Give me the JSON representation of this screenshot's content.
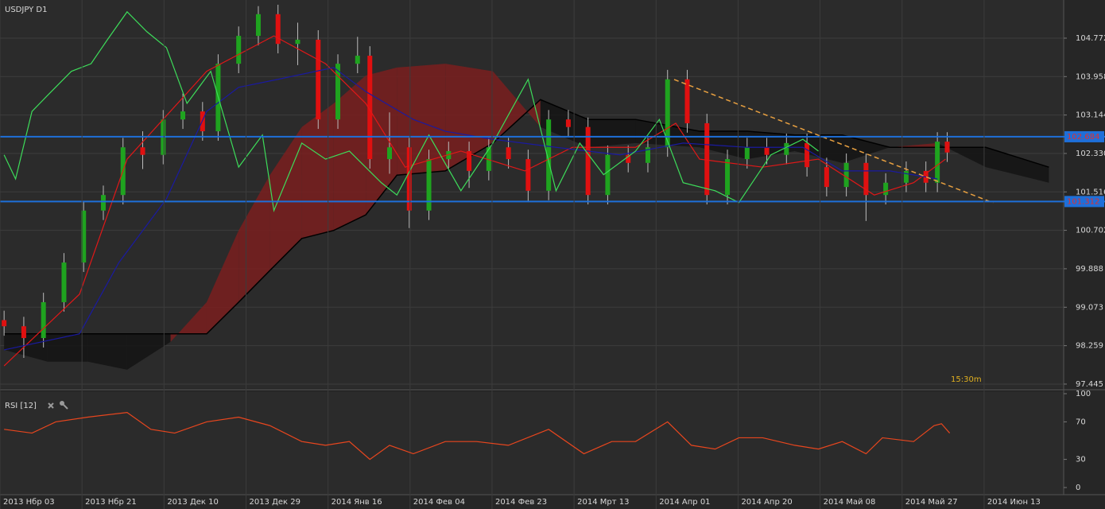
{
  "chart_data": [
    {
      "type": "candlestick",
      "title": "USDJPY D1",
      "annotation": "15:30m",
      "x": [
        0.05,
        0.29,
        0.53,
        0.78,
        1.02,
        1.26,
        1.5,
        1.74,
        1.99,
        2.23,
        2.47,
        2.66,
        2.91,
        3.15,
        3.39,
        3.63,
        3.88,
        4.12,
        4.36,
        4.51,
        4.75,
        4.99,
        5.23,
        5.47,
        5.72,
        5.96,
        6.2,
        6.44,
        6.69,
        6.93,
        7.17,
        7.41,
        7.66,
        7.9,
        8.14,
        8.38,
        8.62,
        8.87,
        9.11,
        9.35,
        9.59,
        9.84,
        10.08,
        10.32,
        10.56,
        10.8,
        11.05,
        11.29,
        11.43,
        11.55
      ],
      "open": [
        98.8,
        98.67,
        98.42,
        99.18,
        100.02,
        101.12,
        101.45,
        102.46,
        102.3,
        103.05,
        103.22,
        102.8,
        104.23,
        104.82,
        105.28,
        104.65,
        104.74,
        103.05,
        104.23,
        104.4,
        102.21,
        102.46,
        101.12,
        102.21,
        102.38,
        101.96,
        102.46,
        102.21,
        101.54,
        103.05,
        102.89,
        101.45,
        102.3,
        102.13,
        102.46,
        103.9,
        102.97,
        101.45,
        102.21,
        102.46,
        102.3,
        102.55,
        102.04,
        101.62,
        102.13,
        101.45,
        101.71,
        101.96,
        101.71,
        102.58
      ],
      "high": [
        99.0,
        98.87,
        99.38,
        100.22,
        101.32,
        101.65,
        102.66,
        102.8,
        103.25,
        103.6,
        103.42,
        104.43,
        105.02,
        105.45,
        105.48,
        105.1,
        104.94,
        104.43,
        104.8,
        104.6,
        103.2,
        102.66,
        102.41,
        102.58,
        102.58,
        102.66,
        102.66,
        102.41,
        103.25,
        103.25,
        103.09,
        102.5,
        102.5,
        102.66,
        104.1,
        104.1,
        103.17,
        102.41,
        102.66,
        102.66,
        102.75,
        102.75,
        102.24,
        102.33,
        102.33,
        101.91,
        102.16,
        102.16,
        102.78,
        102.78
      ],
      "low": [
        98.47,
        98.0,
        98.22,
        98.98,
        99.82,
        100.92,
        101.25,
        102.0,
        102.1,
        102.85,
        102.6,
        102.6,
        104.03,
        104.62,
        104.45,
        104.2,
        102.85,
        102.85,
        104.03,
        102.01,
        101.9,
        100.75,
        100.92,
        102.01,
        101.6,
        101.76,
        102.01,
        101.3,
        101.34,
        102.69,
        101.25,
        101.25,
        101.93,
        101.93,
        102.26,
        102.77,
        101.25,
        101.25,
        102.01,
        102.1,
        102.1,
        101.84,
        101.42,
        101.42,
        100.9,
        101.25,
        101.51,
        101.51,
        101.51,
        102.15
      ],
      "close": [
        98.67,
        98.42,
        99.18,
        100.02,
        101.12,
        101.45,
        102.46,
        102.3,
        103.05,
        103.22,
        102.8,
        104.23,
        104.82,
        105.28,
        104.65,
        104.74,
        103.05,
        104.23,
        104.4,
        102.21,
        102.46,
        101.12,
        102.21,
        102.38,
        101.96,
        102.46,
        102.21,
        101.54,
        103.05,
        102.89,
        101.45,
        102.3,
        102.13,
        102.46,
        103.9,
        102.97,
        101.45,
        102.21,
        102.46,
        102.3,
        102.55,
        102.04,
        101.62,
        102.13,
        101.45,
        101.71,
        101.96,
        101.71,
        102.58,
        102.35
      ],
      "up_color": "#1fa31f",
      "down_color": "#e01010",
      "cloud": {
        "x": [
          0.05,
          0.58,
          1.07,
          1.55,
          2.08,
          2.52,
          2.91,
          3.29,
          3.68,
          4.07,
          4.46,
          4.84,
          5.43,
          6.01,
          6.59,
          7.17,
          7.75,
          8.53,
          9.11,
          9.69,
          10.27,
          10.85,
          11.43,
          12.02,
          12.79
        ],
        "span_a": [
          98.17,
          97.92,
          97.92,
          97.75,
          98.34,
          99.18,
          100.7,
          101.87,
          102.89,
          103.39,
          103.98,
          104.15,
          104.23,
          104.07,
          102.89,
          102.46,
          102.55,
          102.46,
          102.21,
          102.38,
          102.13,
          102.46,
          102.55,
          102.04,
          101.71
        ],
        "span_b": [
          98.51,
          98.51,
          98.51,
          98.51,
          98.51,
          98.51,
          99.18,
          99.85,
          100.53,
          100.7,
          101.03,
          101.87,
          101.96,
          102.55,
          103.47,
          103.05,
          103.05,
          102.8,
          102.8,
          102.72,
          102.72,
          102.46,
          102.46,
          102.46,
          102.04
        ],
        "up_color": "#7a1f1f",
        "down_color": "#141414"
      },
      "lines": [
        {
          "color": "#e01818",
          "x": [
            0.05,
            0.97,
            1.55,
            2.52,
            3.34,
            3.97,
            4.46,
            4.94,
            5.62,
            6.4,
            6.98,
            7.75,
            8.24,
            8.53,
            9.3,
            9.98,
            10.66,
            11.14,
            11.53
          ],
          "values": [
            97.83,
            99.35,
            102.21,
            104.07,
            104.82,
            104.23,
            103.39,
            102.04,
            102.38,
            101.96,
            102.46,
            102.46,
            102.97,
            102.21,
            102.04,
            102.21,
            101.45,
            101.71,
            102.21
          ]
        },
        {
          "color": "#1a1aa0",
          "x": [
            0.05,
            0.97,
            1.45,
            2.03,
            2.52,
            2.91,
            3.39,
            4.07,
            4.46,
            5.04,
            5.43,
            6.01,
            6.78,
            7.56,
            8.33,
            9.11,
            9.79,
            10.27,
            10.85,
            11.43
          ],
          "values": [
            98.17,
            98.51,
            100.02,
            101.37,
            103.22,
            103.73,
            103.9,
            104.15,
            103.64,
            103.05,
            102.8,
            102.63,
            102.46,
            102.3,
            102.55,
            102.46,
            102.46,
            101.96,
            101.96,
            101.79
          ]
        },
        {
          "color": "#3ddc5a",
          "x": [
            0.05,
            0.19,
            0.39,
            0.58,
            0.87,
            1.11,
            1.31,
            1.55,
            1.79,
            2.03,
            2.28,
            2.57,
            2.91,
            3.2,
            3.34,
            3.68,
            3.97,
            4.26,
            4.65,
            4.84,
            5.23,
            5.62,
            6.01,
            6.44,
            6.78,
            7.07,
            7.36,
            7.75,
            8.04,
            8.33,
            8.72,
            9.01,
            9.4,
            9.79,
            9.98
          ],
          "values": [
            102.3,
            101.79,
            103.22,
            103.56,
            104.07,
            104.23,
            104.74,
            105.33,
            104.91,
            104.57,
            103.39,
            104.07,
            102.04,
            102.72,
            101.12,
            102.55,
            102.21,
            102.38,
            101.71,
            101.45,
            102.72,
            101.54,
            102.55,
            103.9,
            101.54,
            102.55,
            101.88,
            102.38,
            103.05,
            101.71,
            101.54,
            101.29,
            102.3,
            102.63,
            102.38
          ]
        }
      ],
      "levels": [
        {
          "value": 102.684,
          "color": "#1e6fd9"
        },
        {
          "value": 101.312,
          "color": "#1e6fd9"
        }
      ],
      "trendline": {
        "x": [
          8.22,
          12.11
        ],
        "values": [
          103.896,
          101.285
        ],
        "color": "#e8a040"
      },
      "xlim": [
        0,
        12.97
      ],
      "ylim": [
        97.36,
        105.58
      ],
      "yticks": [
        104.772,
        103.958,
        103.144,
        {
          "value": 102.33,
          "label": "102.330"
        },
        101.516,
        100.702,
        99.888,
        99.073,
        98.259,
        97.445
      ],
      "grid": true
    },
    {
      "type": "line",
      "title": "RSI [12]",
      "color": "#e8461e",
      "x": [
        0.05,
        0.39,
        0.68,
        1.07,
        1.55,
        1.84,
        2.13,
        2.52,
        2.91,
        3.29,
        3.68,
        3.97,
        4.26,
        4.51,
        4.75,
        5.04,
        5.43,
        5.81,
        6.2,
        6.69,
        7.12,
        7.46,
        7.75,
        8.14,
        8.43,
        8.72,
        9.01,
        9.3,
        9.69,
        9.98,
        10.27,
        10.56,
        10.76,
        11.14,
        11.39,
        11.48,
        11.58
      ],
      "values": [
        62,
        58,
        70,
        75,
        80,
        62,
        58,
        70,
        75,
        66,
        49,
        45,
        49,
        30,
        45,
        36,
        49,
        49,
        45,
        62,
        36,
        49,
        49,
        70,
        45,
        41,
        53,
        53,
        45,
        41,
        49,
        36,
        53,
        49,
        66,
        68,
        58
      ],
      "xlim": [
        0,
        12.97
      ],
      "ylim": [
        0,
        100
      ],
      "yticks": [
        0,
        30,
        70,
        100
      ],
      "xticks": [
        {
          "value": 0,
          "label": "2013 Нбр 03"
        },
        {
          "value": 1,
          "label": "2013 Нбр 21"
        },
        {
          "value": 2,
          "label": "2013 Дек 10"
        },
        {
          "value": 3,
          "label": "2013 Дек 29"
        },
        {
          "value": 4,
          "label": "2014 Янв 16"
        },
        {
          "value": 5,
          "label": "2014 Фев 04"
        },
        {
          "value": 6,
          "label": "2014 Фев 23"
        },
        {
          "value": 7,
          "label": "2014 Мрт 13"
        },
        {
          "value": 8,
          "label": "2014 Апр 01"
        },
        {
          "value": 9,
          "label": "2014 Апр 20"
        },
        {
          "value": 10,
          "label": "2014 Май 08"
        },
        {
          "value": 11,
          "label": "2014 Май 27"
        },
        {
          "value": 12,
          "label": "2014 Июн 13"
        }
      ]
    }
  ]
}
